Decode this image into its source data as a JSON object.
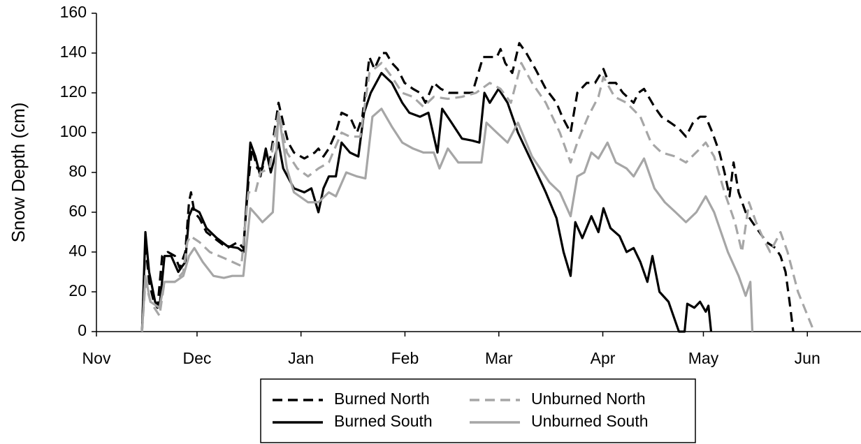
{
  "chart_data": {
    "type": "line",
    "ylabel": "Snow Depth (cm)",
    "xlim": [
      0,
      228
    ],
    "ylim": [
      0,
      160
    ],
    "xticks": [
      {
        "value": 0,
        "label": "Nov"
      },
      {
        "value": 30,
        "label": "Dec"
      },
      {
        "value": 61,
        "label": "Jan"
      },
      {
        "value": 92,
        "label": "Feb"
      },
      {
        "value": 120,
        "label": "Mar"
      },
      {
        "value": 151,
        "label": "Apr"
      },
      {
        "value": 181,
        "label": "May"
      },
      {
        "value": 212,
        "label": "Jun"
      }
    ],
    "yticks": [
      0,
      20,
      40,
      60,
      80,
      100,
      120,
      140,
      160
    ],
    "legend": "bottom",
    "series": [
      {
        "name": "Burned North",
        "color": "#000000",
        "linestyle": "dashed",
        "x": [
          13.6,
          14.6,
          15.7,
          17.1,
          18.2,
          19.6,
          21.3,
          23.4,
          24.8,
          26.5,
          27.6,
          28.2,
          29.2,
          30.7,
          32.8,
          35.9,
          39.0,
          42.2,
          43.8,
          45.3,
          46.4,
          48.0,
          49.5,
          50.5,
          51.6,
          53.0,
          54.3,
          55.7,
          57.2,
          58.9,
          62.0,
          65.1,
          66.2,
          67.7,
          69.3,
          71.4,
          73.1,
          75.6,
          77.7,
          79.3,
          81.4,
          82.9,
          85.0,
          86.4,
          88.1,
          89.8,
          91.9,
          94.4,
          96.5,
          98.1,
          100.6,
          102.7,
          105.2,
          109.0,
          112.1,
          115.3,
          117.3,
          119.4,
          120.5,
          121.9,
          124.0,
          126.1,
          128.2,
          130.9,
          134.0,
          137.2,
          138.9,
          141.4,
          143.4,
          146.2,
          148.7,
          151.2,
          152.8,
          154.9,
          157.0,
          160.2,
          161.6,
          163.3,
          166.4,
          168.5,
          171.2,
          173.7,
          175.8,
          177.9,
          180.0,
          181.7,
          183.7,
          185.8,
          187.3,
          188.8,
          190.0,
          191.5,
          193.6,
          195.6,
          197.7,
          199.8,
          202.5,
          204.0,
          205.5,
          206.7,
          207.8
        ],
        "values": [
          0,
          45,
          25,
          15,
          12,
          38,
          40,
          38,
          32,
          40,
          65,
          70,
          60,
          57,
          50,
          46,
          42,
          45,
          42,
          75,
          92,
          82,
          82,
          90,
          85,
          100,
          115,
          105,
          95,
          90,
          87,
          90,
          92,
          88,
          92,
          100,
          110,
          108,
          100,
          108,
          138,
          132,
          140,
          140,
          135,
          132,
          125,
          122,
          120,
          115,
          125,
          122,
          120,
          120,
          120,
          138,
          138,
          138,
          142,
          135,
          130,
          145,
          140,
          132,
          122,
          115,
          108,
          100,
          120,
          125,
          125,
          132,
          125,
          125,
          120,
          115,
          120,
          122,
          113,
          108,
          105,
          102,
          98,
          105,
          108,
          108,
          100,
          90,
          80,
          68,
          85,
          70,
          60,
          55,
          50,
          45,
          42,
          38,
          30,
          15,
          0
        ]
      },
      {
        "name": "Burned South",
        "color": "#000000",
        "linestyle": "solid",
        "x": [
          13.6,
          14.6,
          15.7,
          17.5,
          18.8,
          20.3,
          22.3,
          24.4,
          26.5,
          27.6,
          28.6,
          30.7,
          32.8,
          35.9,
          39.0,
          42.2,
          43.8,
          45.9,
          47.4,
          48.9,
          50.5,
          52.0,
          54.3,
          55.7,
          58.9,
          62.0,
          64.1,
          66.2,
          67.7,
          69.3,
          71.4,
          73.1,
          75.6,
          78.1,
          79.8,
          81.8,
          85.0,
          88.1,
          91.2,
          93.3,
          96.5,
          99.0,
          101.7,
          103.1,
          105.9,
          109.0,
          112.1,
          114.2,
          115.7,
          117.3,
          119.9,
          122.6,
          125.7,
          129.9,
          134.0,
          137.2,
          139.3,
          141.4,
          142.8,
          144.9,
          147.6,
          149.7,
          151.2,
          153.3,
          156.0,
          158.1,
          160.2,
          162.2,
          164.3,
          165.8,
          167.9,
          170.6,
          173.7,
          175.4,
          176.2,
          178.3,
          180.0,
          181.7,
          182.5,
          183.3
        ],
        "values": [
          0,
          50,
          30,
          15,
          12,
          38,
          38,
          30,
          35,
          58,
          62,
          60,
          52,
          47,
          43,
          42,
          40,
          95,
          88,
          78,
          92,
          80,
          95,
          82,
          72,
          70,
          72,
          60,
          72,
          78,
          78,
          95,
          90,
          88,
          110,
          120,
          130,
          125,
          115,
          110,
          108,
          110,
          90,
          112,
          105,
          97,
          96,
          95,
          120,
          115,
          122,
          115,
          100,
          85,
          70,
          57,
          40,
          28,
          55,
          47,
          58,
          50,
          62,
          52,
          48,
          40,
          42,
          35,
          25,
          38,
          20,
          15,
          0,
          0,
          14,
          12,
          15,
          10,
          13,
          0
        ]
      },
      {
        "name": "Unburned North",
        "color": "#a6a6a6",
        "linestyle": "dashed",
        "x": [
          13.6,
          14.6,
          16.1,
          18.8,
          20.3,
          23.4,
          25.9,
          27.1,
          28.0,
          30.7,
          33.8,
          38.0,
          43.2,
          45.3,
          47.4,
          48.9,
          51.6,
          54.3,
          56.8,
          59.9,
          63.1,
          66.2,
          69.3,
          73.1,
          75.6,
          78.7,
          81.4,
          85.0,
          88.1,
          91.2,
          94.4,
          97.5,
          100.6,
          104.8,
          109.0,
          113.2,
          117.3,
          120.5,
          123.6,
          126.7,
          129.9,
          134.0,
          138.2,
          141.4,
          143.4,
          146.6,
          149.7,
          151.2,
          154.5,
          158.1,
          162.2,
          165.4,
          168.5,
          172.7,
          175.8,
          180.0,
          181.7,
          184.2,
          187.3,
          190.4,
          192.5,
          194.6,
          196.7,
          198.8,
          200.9,
          204.0,
          206.1,
          209.2,
          214.0
        ],
        "values": [
          0,
          25,
          15,
          8,
          25,
          25,
          30,
          45,
          48,
          45,
          40,
          37,
          33,
          70,
          70,
          80,
          82,
          110,
          90,
          82,
          78,
          82,
          85,
          100,
          98,
          98,
          130,
          135,
          128,
          120,
          118,
          113,
          118,
          117,
          118,
          120,
          125,
          122,
          115,
          135,
          125,
          115,
          100,
          85,
          95,
          108,
          118,
          128,
          118,
          115,
          108,
          95,
          90,
          88,
          85,
          92,
          95,
          88,
          70,
          55,
          40,
          65,
          55,
          47,
          40,
          50,
          40,
          20,
          0
        ]
      },
      {
        "name": "Unburned South",
        "color": "#a6a6a6",
        "linestyle": "solid",
        "x": [
          13.6,
          14.6,
          16.1,
          18.8,
          20.3,
          23.4,
          25.9,
          27.6,
          29.2,
          31.7,
          34.9,
          38.0,
          40.5,
          43.8,
          45.9,
          48.0,
          49.5,
          52.6,
          54.3,
          56.8,
          58.9,
          63.1,
          66.2,
          69.3,
          71.4,
          74.5,
          77.7,
          80.2,
          82.3,
          85.0,
          88.1,
          91.2,
          94.4,
          97.5,
          100.6,
          102.3,
          104.8,
          107.9,
          112.1,
          114.8,
          116.3,
          119.4,
          122.6,
          125.7,
          129.9,
          135.1,
          138.2,
          141.4,
          143.4,
          145.5,
          147.6,
          149.7,
          152.4,
          154.9,
          158.1,
          160.2,
          163.3,
          166.4,
          169.5,
          172.7,
          175.8,
          178.9,
          181.7,
          184.2,
          188.3,
          191.5,
          193.6,
          195.0,
          195.6
        ],
        "values": [
          0,
          28,
          15,
          12,
          25,
          25,
          28,
          38,
          42,
          35,
          28,
          27,
          28,
          28,
          62,
          58,
          55,
          60,
          110,
          82,
          70,
          65,
          65,
          70,
          68,
          80,
          78,
          77,
          108,
          112,
          103,
          95,
          92,
          90,
          90,
          82,
          92,
          85,
          85,
          85,
          105,
          100,
          95,
          105,
          88,
          75,
          70,
          58,
          78,
          80,
          90,
          87,
          95,
          85,
          82,
          78,
          87,
          72,
          65,
          60,
          55,
          60,
          68,
          60,
          40,
          28,
          18,
          25,
          0
        ]
      }
    ]
  }
}
